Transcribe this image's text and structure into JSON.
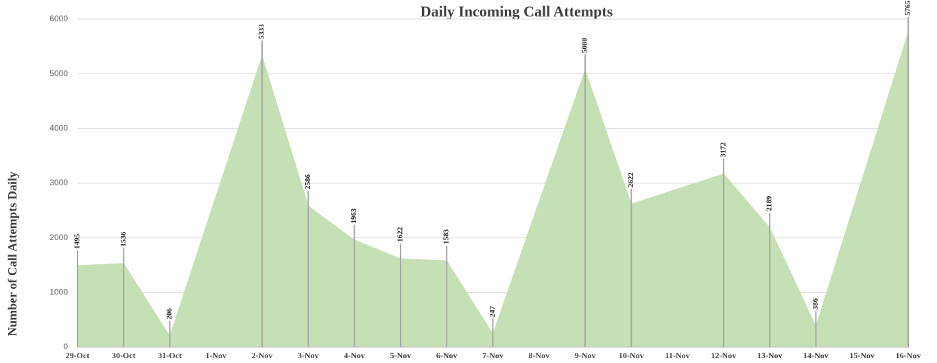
{
  "chart_data": {
    "type": "area",
    "title": "Daily Incoming Call Attempts",
    "y_label": "Number of Call Attempts Daily",
    "categories": [
      "29-Oct",
      "30-Oct",
      "31-Oct",
      "1-Nov",
      "2-Nov",
      "3-Nov",
      "4-Nov",
      "5-Nov",
      "6-Nov",
      "7-Nov",
      "8-Nov",
      "9-Nov",
      "10-Nov",
      "11-Nov",
      "12-Nov",
      "13-Nov",
      "14-Nov",
      "15-Nov",
      "16-Nov"
    ],
    "values": [
      1495,
      1536,
      206,
      null,
      5333,
      2586,
      1963,
      1622,
      1583,
      247,
      null,
      5080,
      2622,
      null,
      3172,
      2189,
      386,
      null,
      5765
    ],
    "color": "#c5e0b4",
    "ylim": [
      0,
      6000
    ],
    "yticks": [
      0,
      1000,
      2000,
      3000,
      4000,
      5000,
      6000
    ],
    "grid": true
  }
}
